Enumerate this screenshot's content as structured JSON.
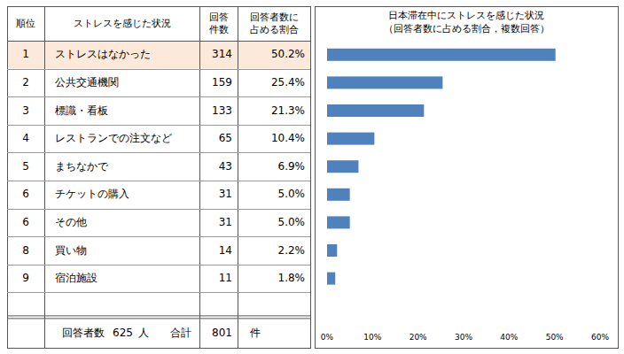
{
  "table": {
    "headers": [
      [
        "順位"
      ],
      [
        "ストレスを感じた状況"
      ],
      [
        "回答",
        "件数"
      ],
      [
        "回答者数に",
        "占める割合"
      ]
    ],
    "rows": [
      [
        1,
        "ストレスはなかった",
        314,
        "50.2%"
      ],
      [
        2,
        "公共交通機関",
        159,
        "25.4%"
      ],
      [
        3,
        "標識・看板",
        133,
        "21.3%"
      ],
      [
        4,
        "レストランでの注文など",
        65,
        "10.4%"
      ],
      [
        5,
        "まちなかで",
        43,
        "6.9%"
      ],
      [
        6,
        "チケットの購入",
        31,
        "5.0%"
      ],
      [
        6,
        "その他",
        31,
        "5.0%"
      ],
      [
        8,
        "買い物",
        14,
        "2.2%"
      ],
      [
        9,
        "宿泊施設",
        11,
        "1.8%"
      ]
    ],
    "footer": {
      "respondents_label": "回答者数",
      "respondents": 625,
      "respondents_unit": "人",
      "total_label": "合計",
      "total": 801,
      "total_unit": "件"
    }
  },
  "chart_data": {
    "type": "bar",
    "orientation": "horizontal",
    "title": "日本滞在中にストレスを感じた状況",
    "subtitle": "（回答者数に占める割合，複数回答）",
    "values": [
      50.2,
      25.4,
      21.3,
      10.4,
      6.9,
      5.0,
      5.0,
      2.2,
      1.8
    ],
    "color": "#4f81bd",
    "xlim": [
      0,
      60
    ],
    "xticks": [
      {
        "value": 0,
        "label": "0%"
      },
      {
        "value": 10,
        "label": "10%"
      },
      {
        "value": 20,
        "label": "20%"
      },
      {
        "value": 30,
        "label": "30%"
      },
      {
        "value": 40,
        "label": "40%"
      },
      {
        "value": 50,
        "label": "50%"
      },
      {
        "value": 60,
        "label": "60%"
      }
    ],
    "grid": false,
    "tick_labels": "x"
  }
}
